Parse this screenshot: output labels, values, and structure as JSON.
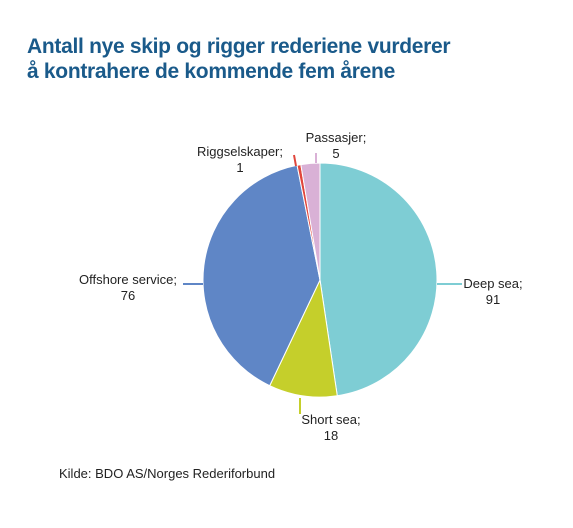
{
  "title_lines": [
    "Antall nye skip og rigger rederiene vurderer",
    "å kontrahere de kommende fem årene"
  ],
  "source": "Kilde: BDO AS/Norges Rederiforbund",
  "chart_data": {
    "type": "pie",
    "title": "Antall nye skip og rigger rederiene vurderer å kontrahere de kommende fem årene",
    "slices": [
      {
        "label": "Deep sea",
        "display": "Deep sea;",
        "value": 91,
        "color": "#7ecdd4"
      },
      {
        "label": "Short sea",
        "display": "Short sea;",
        "value": 18,
        "color": "#c5cf2b"
      },
      {
        "label": "Offshore service",
        "display": "Offshore service;",
        "value": 76,
        "color": "#5f86c6"
      },
      {
        "label": "Riggselskaper",
        "display": "Riggselskaper;",
        "value": 1,
        "color": "#e0463c"
      },
      {
        "label": "Passasjer",
        "display": "Passasjer;",
        "value": 5,
        "color": "#d9b1d6"
      }
    ]
  }
}
